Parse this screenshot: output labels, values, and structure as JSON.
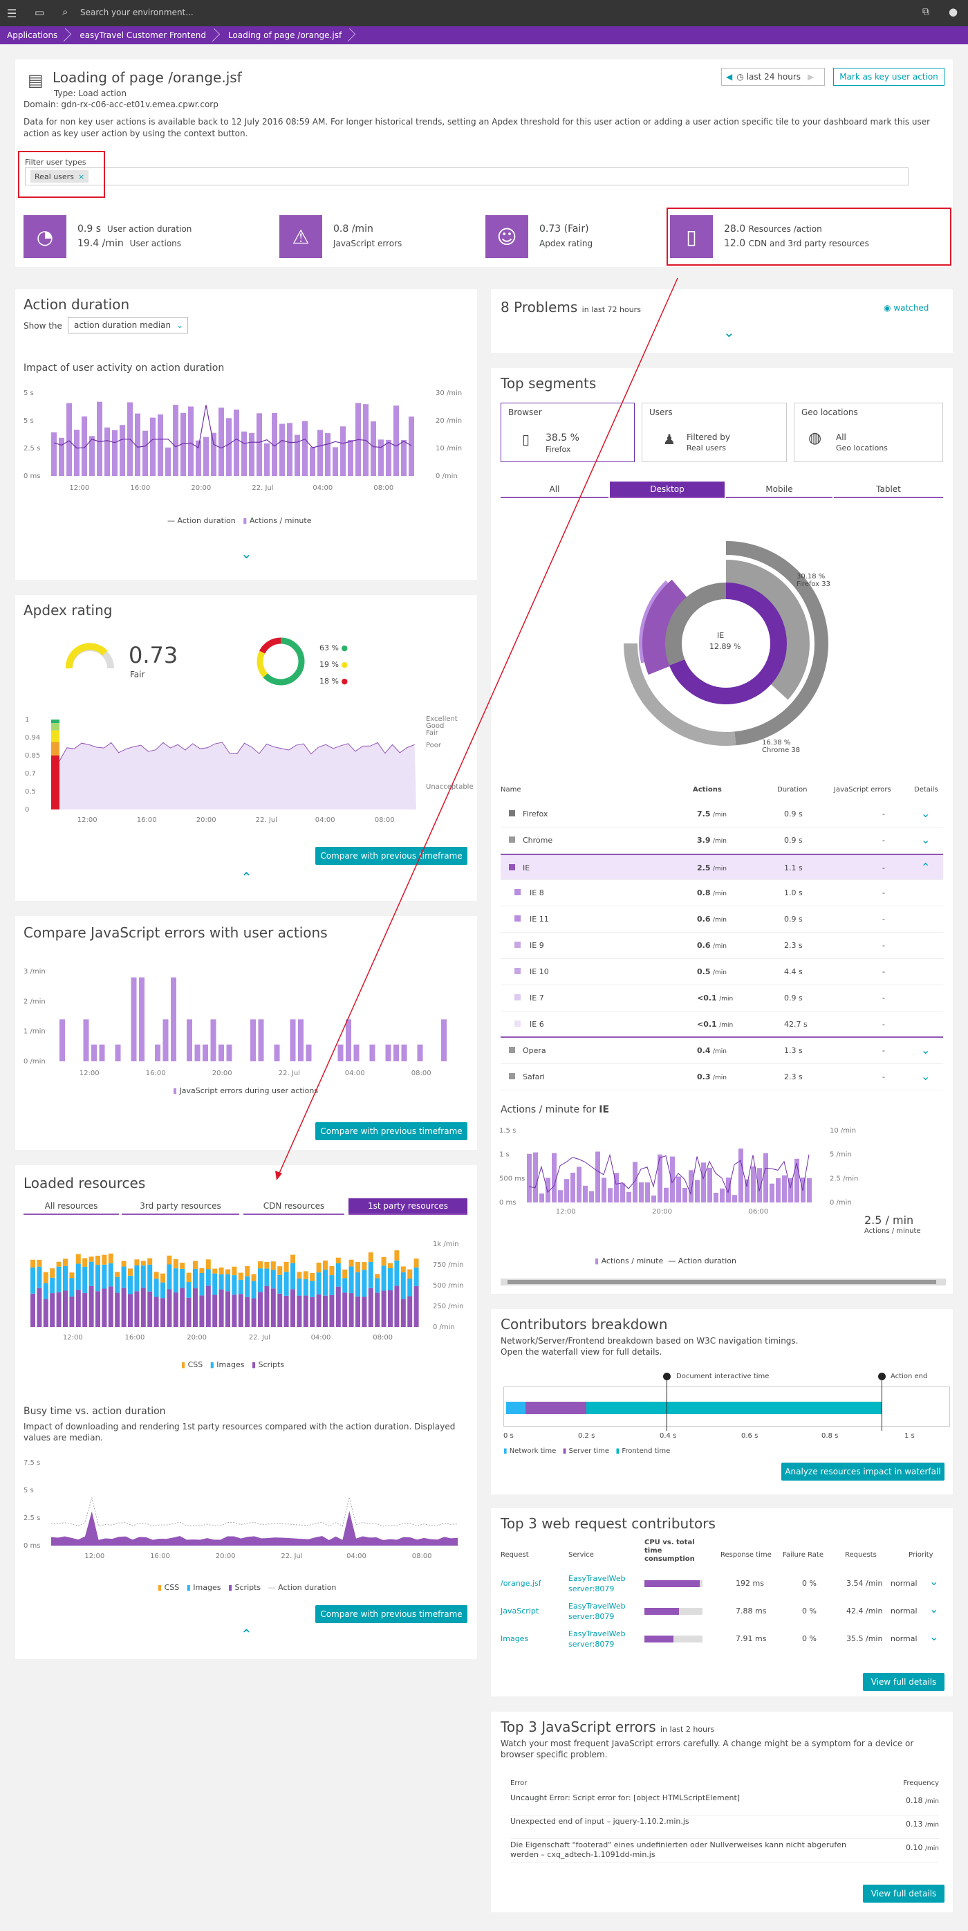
{
  "topbar": {
    "search_placeholder": "Search your environment..."
  },
  "breadcrumb": [
    "Applications",
    "easyTravel Customer Frontend",
    "Loading of page /orange.jsf"
  ],
  "header": {
    "title": "Loading of page /orange.jsf",
    "type": "Type: Load action",
    "domain": "Domain: gdn-rx-c06-acc-et01v.emea.cpwr.corp",
    "info": "Data for non key user actions is available back to 12 July 2016 08:59 AM. For longer historical trends, setting an Apdex threshold for this user action or adding a user action specific tile to your dashboard mark this user action as key user action by using the context button.",
    "timeframe": "last 24 hours",
    "key_button": "Mark as key user action"
  },
  "filter": {
    "label": "Filter user types",
    "chip": "Real users"
  },
  "tiles": [
    {
      "v1": "0.9 s",
      "l1": "User action duration",
      "v2": "19.4 /min",
      "l2": "User actions"
    },
    {
      "v1": "0.8 /min",
      "l1": "JavaScript errors"
    },
    {
      "v1": "0.73 (Fair)",
      "l1": "Apdex rating"
    },
    {
      "v1": "28.0",
      "l1": "Resources /action",
      "v2": "12.0",
      "l2": "CDN and 3rd party resources"
    }
  ],
  "action_duration": {
    "title": "Action duration",
    "show_label": "Show the",
    "select": "action duration median",
    "subtitle": "Impact of user activity on action duration",
    "y_left": [
      "5 s",
      "5 s",
      "2.5 s",
      "0 ms"
    ],
    "y_right": [
      "30 /min",
      "20 /min",
      "10 /min",
      "0 /min"
    ],
    "x": [
      "12:00",
      "16:00",
      "20:00",
      "22. Jul",
      "04:00",
      "08:00"
    ],
    "legend": [
      "Action duration",
      "Actions / minute"
    ]
  },
  "apdex": {
    "title": "Apdex rating",
    "value": "0.73",
    "rating": "Fair",
    "pcts": [
      "63 %",
      "19 %",
      "18 %"
    ],
    "y": [
      "1",
      "0.94",
      "0.85",
      "0.7",
      "0.5",
      "0"
    ],
    "bands": [
      "Excellent",
      "Good",
      "Fair",
      "Poor",
      "Unacceptable"
    ],
    "x": [
      "12:00",
      "16:00",
      "20:00",
      "22. Jul",
      "04:00",
      "08:00"
    ],
    "compare": "Compare with previous timeframe"
  },
  "js_errors": {
    "title": "Compare JavaScript errors with user actions",
    "y": [
      "3 /min",
      "2 /min",
      "1 /min",
      "0 /min"
    ],
    "x": [
      "12:00",
      "16:00",
      "20:00",
      "22. Jul",
      "04:00",
      "08:00"
    ],
    "legend": "JavaScript errors during user actions",
    "compare": "Compare with previous timeframe"
  },
  "loaded": {
    "title": "Loaded resources",
    "tabs": [
      "All resources",
      "3rd party resources",
      "CDN resources",
      "1st party resources"
    ],
    "y": [
      "1k /min",
      "750 /min",
      "500 /min",
      "250 /min",
      "0 /min"
    ],
    "x": [
      "12:00",
      "16:00",
      "20:00",
      "22. Jul",
      "04:00",
      "08:00"
    ],
    "legend": [
      "CSS",
      "Images",
      "Scripts"
    ],
    "busy_title": "Busy time vs. action duration",
    "busy_desc": "Impact of downloading and rendering 1st party resources compared with the action duration. Displayed values are median.",
    "busy_y": [
      "7.5 s",
      "5 s",
      "2.5 s",
      "0 ms"
    ],
    "busy_legend": [
      "CSS",
      "Images",
      "Scripts",
      "Action duration"
    ],
    "compare": "Compare with previous timeframe"
  },
  "problems": {
    "title": "8 Problems",
    "sub": "in last 72 hours",
    "watched": "watched"
  },
  "segments": {
    "title": "Top segments",
    "cards": [
      {
        "head": "Browser",
        "v": "38.5 %",
        "s": "Firefox"
      },
      {
        "head": "Users",
        "v": "Filtered by",
        "s": "Real users"
      },
      {
        "head": "Geo locations",
        "v": "All",
        "s": "Geo locations"
      }
    ],
    "tabs": [
      "All",
      "Desktop",
      "Mobile",
      "Tablet"
    ],
    "center_name": "IE",
    "center_pct": "12.89 %",
    "lbl_ff": "30.18 %",
    "lbl_ff2": "Firefox 33",
    "lbl_ch": "16.38 %",
    "lbl_ch2": "Chrome 38"
  },
  "table": {
    "headers": [
      "Name",
      "Actions",
      "Duration",
      "JavaScript errors",
      "Details"
    ],
    "rows": [
      {
        "name": "Firefox",
        "actions": "7.5",
        "dur": "0.9 s",
        "js": "-"
      },
      {
        "name": "Chrome",
        "actions": "3.9",
        "dur": "0.9 s",
        "js": "-"
      },
      {
        "name": "IE",
        "actions": "2.5",
        "dur": "1.1 s",
        "js": "-"
      },
      {
        "name": "IE 8",
        "actions": "0.8",
        "dur": "1.0 s",
        "js": "-"
      },
      {
        "name": "IE 11",
        "actions": "0.6",
        "dur": "0.9 s",
        "js": "-"
      },
      {
        "name": "IE 9",
        "actions": "0.6",
        "dur": "2.3 s",
        "js": "-"
      },
      {
        "name": "IE 10",
        "actions": "0.5",
        "dur": "4.4 s",
        "js": "-"
      },
      {
        "name": "IE 7",
        "actions": "<0.1",
        "dur": "0.9 s",
        "js": "-"
      },
      {
        "name": "IE 6",
        "actions": "<0.1",
        "dur": "42.7 s",
        "js": "-"
      },
      {
        "name": "Opera",
        "actions": "0.4",
        "dur": "1.3 s",
        "js": "-"
      },
      {
        "name": "Safari",
        "actions": "0.3",
        "dur": "2.3 s",
        "js": "-"
      }
    ],
    "unit": "/min"
  },
  "apm": {
    "title": "Actions / minute for",
    "bold": "IE",
    "y_left": [
      "1.5 s",
      "1 s",
      "500 ms",
      "0 ms"
    ],
    "y_right": [
      "10 /min",
      "5 /min",
      "2.5 /min",
      "0 /min"
    ],
    "x": [
      "12:00",
      "20:00",
      "06:00"
    ],
    "big": "2.5 / min",
    "big_sub": "Actions / minute",
    "legend": [
      "Actions / minute",
      "Action duration"
    ]
  },
  "contrib": {
    "title": "Contributors breakdown",
    "desc": "Network/Server/Frontend breakdown based on W3C navigation timings. Open the waterfall view for full details.",
    "m1": "Document interactive time",
    "m2": "Action end",
    "x": [
      "0 s",
      "0.2 s",
      "0.4 s",
      "0.6 s",
      "0.8 s",
      "1 s"
    ],
    "legend": [
      "Network time",
      "Server time",
      "Frontend time"
    ],
    "btn": "Analyze resources impact in waterfall"
  },
  "web": {
    "title": "Top 3 web request contributors",
    "headers": [
      "Request",
      "Service",
      "CPU vs. total time consumption",
      "Response time",
      "Failure Rate",
      "Requests",
      "Priority"
    ],
    "rows": [
      {
        "req": "/orange.jsf",
        "svc": "EasyTravelWeb server:8079",
        "resp": "192 ms",
        "fail": "0 %",
        "reqs": "3.54 /min",
        "prio": "normal",
        "cpu": 0.95
      },
      {
        "req": "JavaScript",
        "svc": "EasyTravelWeb server:8079",
        "resp": "7.88 ms",
        "fail": "0 %",
        "reqs": "42.4 /min",
        "prio": "normal",
        "cpu": 0.6
      },
      {
        "req": "Images",
        "svc": "EasyTravelWeb server:8079",
        "resp": "7.91 ms",
        "fail": "0 %",
        "reqs": "35.5 /min",
        "prio": "normal",
        "cpu": 0.5
      }
    ],
    "btn": "View full details"
  },
  "jserr": {
    "title": "Top 3 JavaScript errors",
    "sub": "in last 2 hours",
    "desc": "Watch your most frequent JavaScript errors carefully. A change might be a symptom for a device or browser specific problem.",
    "h1": "Error",
    "h2": "Frequency",
    "rows": [
      {
        "e": "Uncaught Error: Script error for: [object HTMLScriptElement]",
        "f": "0.18"
      },
      {
        "e": "Unexpected end of input – jquery-1.10.2.min.js",
        "f": "0.13"
      },
      {
        "e": "Die Eigenschaft \"footerad\" eines undefinierten oder Nullverweises kann nicht abgerufen werden – cxq_adtech-1.1091dd-min.js",
        "f": "0.10"
      }
    ],
    "btn": "View full details"
  },
  "colors": {
    "purple": "#6f2da8",
    "purple_light": "#b98ee0",
    "teal": "#00a1b2",
    "orange": "#f5a623",
    "blue": "#2ab6f4"
  }
}
